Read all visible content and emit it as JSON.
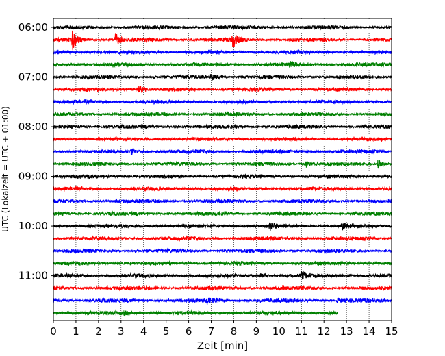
{
  "chart_data": {
    "type": "line",
    "title": "",
    "xlabel": "Zeit  [min]",
    "ylabel": "UTC (Lokalzeit = UTC + 01:00)",
    "xlim": [
      0,
      15
    ],
    "x_ticks": [
      "0",
      "1",
      "2",
      "3",
      "4",
      "5",
      "6",
      "7",
      "8",
      "9",
      "10",
      "11",
      "12",
      "13",
      "14",
      "15"
    ],
    "y_tick_labels": [
      {
        "label": "06:00",
        "trace_index": 0
      },
      {
        "label": "07:00",
        "trace_index": 4
      },
      {
        "label": "08:00",
        "trace_index": 8
      },
      {
        "label": "09:00",
        "trace_index": 12
      },
      {
        "label": "10:00",
        "trace_index": 16
      },
      {
        "label": "11:00",
        "trace_index": 20
      }
    ],
    "grid": "vertical-dotted",
    "trace_minutes": 15,
    "colors": [
      "#000000",
      "#ff0000",
      "#0000ff",
      "#008000"
    ],
    "series": [
      {
        "start": "06:00",
        "color": "#000000",
        "end_min": 15,
        "events": [
          {
            "t": 7.2,
            "amp": 0.15
          }
        ]
      },
      {
        "start": "06:15",
        "color": "#ff0000",
        "end_min": 15,
        "events": [
          {
            "t": 0.85,
            "amp": 0.85
          },
          {
            "t": 2.75,
            "amp": 0.6
          },
          {
            "t": 7.95,
            "amp": 0.7
          }
        ]
      },
      {
        "start": "06:30",
        "color": "#0000ff",
        "end_min": 15,
        "events": []
      },
      {
        "start": "06:45",
        "color": "#008000",
        "end_min": 15,
        "events": [
          {
            "t": 10.5,
            "amp": 0.25
          }
        ]
      },
      {
        "start": "07:00",
        "color": "#000000",
        "end_min": 15,
        "events": [
          {
            "t": 7.0,
            "amp": 0.3
          }
        ]
      },
      {
        "start": "07:15",
        "color": "#ff0000",
        "end_min": 15,
        "events": [
          {
            "t": 3.8,
            "amp": 0.35
          }
        ]
      },
      {
        "start": "07:30",
        "color": "#0000ff",
        "end_min": 15,
        "events": []
      },
      {
        "start": "07:45",
        "color": "#008000",
        "end_min": 15,
        "events": []
      },
      {
        "start": "08:00",
        "color": "#000000",
        "end_min": 15,
        "events": []
      },
      {
        "start": "08:15",
        "color": "#ff0000",
        "end_min": 15,
        "events": []
      },
      {
        "start": "08:30",
        "color": "#0000ff",
        "end_min": 15,
        "events": [
          {
            "t": 3.45,
            "amp": 0.28
          }
        ]
      },
      {
        "start": "08:45",
        "color": "#008000",
        "end_min": 15,
        "events": [
          {
            "t": 11.2,
            "amp": 0.3
          },
          {
            "t": 14.4,
            "amp": 0.35
          }
        ]
      },
      {
        "start": "09:00",
        "color": "#000000",
        "end_min": 15,
        "events": []
      },
      {
        "start": "09:15",
        "color": "#ff0000",
        "end_min": 15,
        "events": []
      },
      {
        "start": "09:30",
        "color": "#0000ff",
        "end_min": 15,
        "events": []
      },
      {
        "start": "09:45",
        "color": "#008000",
        "end_min": 15,
        "events": []
      },
      {
        "start": "10:00",
        "color": "#000000",
        "end_min": 15,
        "events": [
          {
            "t": 9.6,
            "amp": 0.35
          },
          {
            "t": 12.8,
            "amp": 0.3
          }
        ]
      },
      {
        "start": "10:15",
        "color": "#ff0000",
        "end_min": 15,
        "events": []
      },
      {
        "start": "10:30",
        "color": "#0000ff",
        "end_min": 15,
        "events": []
      },
      {
        "start": "10:45",
        "color": "#008000",
        "end_min": 15,
        "events": []
      },
      {
        "start": "11:00",
        "color": "#000000",
        "end_min": 15,
        "events": [
          {
            "t": 11.0,
            "amp": 0.3
          },
          {
            "t": 9.2,
            "amp": 0.2
          }
        ]
      },
      {
        "start": "11:15",
        "color": "#ff0000",
        "end_min": 15,
        "events": []
      },
      {
        "start": "11:30",
        "color": "#0000ff",
        "end_min": 15,
        "events": [
          {
            "t": 6.8,
            "amp": 0.25
          },
          {
            "t": 12.6,
            "amp": 0.2
          }
        ]
      },
      {
        "start": "11:45",
        "color": "#008000",
        "end_min": 12.6,
        "events": [
          {
            "t": 3.1,
            "amp": 0.18
          }
        ]
      }
    ]
  }
}
